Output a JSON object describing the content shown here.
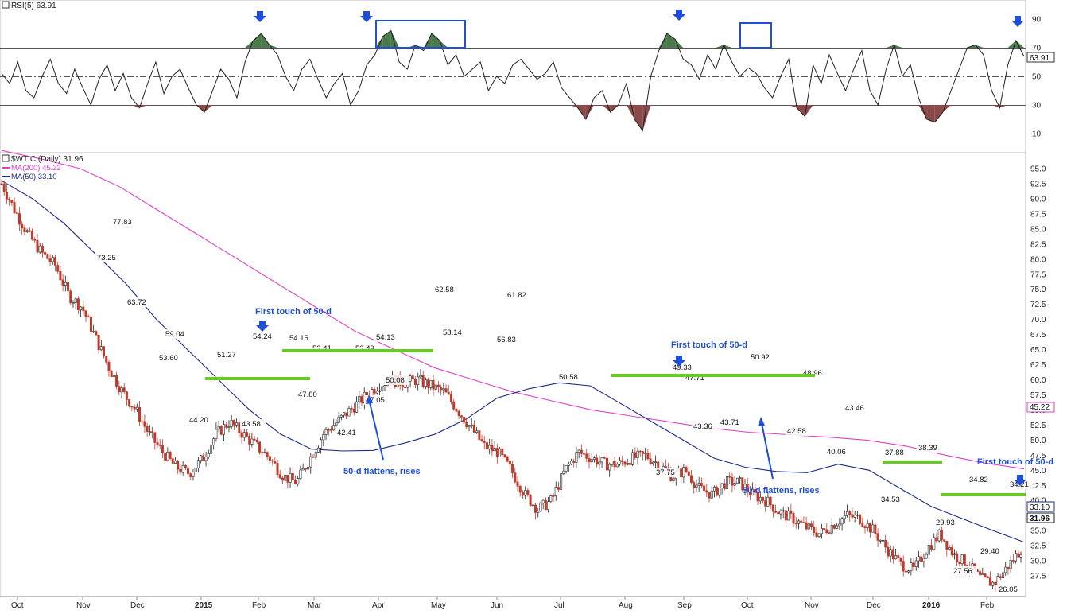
{
  "panel_labels": {
    "rsi": "RSI(5) 63.91",
    "price": "$WTIC (Daily) 31.96",
    "ma200": "MA(200) 45.22",
    "ma50": "MA(50) 33.10"
  },
  "colors": {
    "price_down": "#c0392b",
    "price_up": "#222222",
    "ma200": "#e040c8",
    "ma50": "#1a2a8a",
    "support": "#66cc22",
    "annotation": "#1f4fd8",
    "rsi_over": "#4a7a4a",
    "rsi_under": "#8b4a4a"
  },
  "chart_data": {
    "type": "line",
    "price_axis": {
      "min": 25,
      "max": 95,
      "ticks": [
        "95.0",
        "92.5",
        "90.0",
        "87.5",
        "85.0",
        "82.5",
        "80.0",
        "77.5",
        "75.0",
        "72.5",
        "70.0",
        "67.5",
        "65.0",
        "62.5",
        "60.0",
        "57.5",
        "55.0",
        "52.5",
        "50.0",
        "47.5",
        "45.0",
        "42.5",
        "40.0",
        "37.5",
        "35.0",
        "32.5",
        "30.0",
        "27.5"
      ]
    },
    "rsi_axis": {
      "min": 0,
      "max": 100,
      "ticks": [
        "90",
        "70",
        "50",
        "30",
        "10"
      ],
      "levels": [
        70,
        50,
        30
      ]
    },
    "x_axis_labels": [
      "Oct",
      "Nov",
      "Dec",
      "2015",
      "Feb",
      "Mar",
      "Apr",
      "May",
      "Jun",
      "Jul",
      "Aug",
      "Sep",
      "Oct",
      "Nov",
      "Dec",
      "2016",
      "Feb"
    ],
    "series": [
      {
        "name": "MA(200)",
        "values": [
          98,
          96.6,
          95,
          92,
          88,
          84,
          80,
          76,
          72,
          68,
          65,
          62,
          60,
          58,
          56.5,
          55,
          54,
          53,
          52,
          51.3,
          50.9,
          50.5,
          50,
          49,
          47.5,
          46.2,
          45.22
        ]
      },
      {
        "name": "MA(50)",
        "values": [
          93,
          90,
          86,
          81,
          76,
          70,
          65,
          60,
          55,
          51,
          48.5,
          48.2,
          48.3,
          49.5,
          51,
          53.5,
          57,
          58.5,
          59.5,
          59,
          56,
          53,
          50,
          47,
          45.5,
          44.8,
          44.6,
          46,
          45,
          42,
          39,
          37,
          35,
          33.1
        ]
      }
    ],
    "price_path": [
      92.5,
      88,
      84,
      81,
      79,
      74,
      72,
      67,
      62,
      58,
      55,
      51,
      48,
      45.5,
      44.5,
      47,
      51,
      53,
      51,
      49,
      47,
      44,
      43,
      47,
      51,
      53,
      55,
      57,
      59,
      60,
      59.5,
      60,
      59,
      58,
      55,
      52,
      49,
      48,
      45,
      41,
      38.5,
      40,
      45,
      48,
      47,
      46,
      46,
      47,
      47.5,
      46,
      44,
      45,
      42,
      41,
      43,
      43,
      41,
      40,
      38,
      37,
      35.5,
      34.5,
      36,
      37.5,
      37,
      35,
      32,
      29.5,
      28.5,
      32,
      34.5,
      31,
      29.5,
      27,
      26.2,
      29,
      31.96
    ],
    "price_labels": [
      "77.83",
      "73.25",
      "63.72",
      "59.04",
      "53.60",
      "51.27",
      "44.20",
      "43.58",
      "54.24",
      "54.15",
      "53.41",
      "47.80",
      "53.49",
      "42.41",
      "54.13",
      "47.05",
      "50.08",
      "62.58",
      "58.14",
      "61.82",
      "56.83",
      "50.58",
      "49.33",
      "47.71",
      "43.36",
      "43.71",
      "50.92",
      "48.96",
      "42.58",
      "40.06",
      "43.46",
      "37.75",
      "37.88",
      "38.39",
      "34.53",
      "29.93",
      "34.82",
      "27.56",
      "29.40",
      "34.21",
      "26.05"
    ],
    "last_values": [
      "63.91",
      "45.22",
      "33.10",
      "31.96"
    ],
    "annotations": [
      "First touch of 50-d",
      "50-d flattens, rises",
      "First touch of 50-d",
      "50-d flattens, rises",
      "First touch of 50-d"
    ],
    "rsi_values": [
      52,
      45,
      60,
      40,
      35,
      50,
      62,
      45,
      38,
      55,
      42,
      30,
      48,
      58,
      40,
      52,
      35,
      28,
      45,
      60,
      38,
      50,
      55,
      42,
      30,
      25,
      40,
      55,
      48,
      35,
      60,
      75,
      80,
      72,
      65,
      50,
      40,
      55,
      62,
      48,
      35,
      45,
      52,
      30,
      40,
      58,
      65,
      78,
      82,
      60,
      55,
      72,
      68,
      80,
      75,
      58,
      65,
      50,
      55,
      60,
      40,
      50,
      45,
      58,
      62,
      55,
      48,
      52,
      60,
      42,
      35,
      28,
      20,
      35,
      40,
      25,
      30,
      45,
      20,
      12,
      50,
      68,
      80,
      76,
      62,
      58,
      48,
      65,
      55,
      72,
      60,
      50,
      56,
      52,
      42,
      35,
      50,
      62,
      28,
      22,
      58,
      45,
      65,
      52,
      40,
      55,
      68,
      40,
      30,
      55,
      72,
      50,
      58,
      35,
      20,
      18,
      25,
      40,
      55,
      70,
      72,
      65,
      40,
      28,
      58,
      75,
      63.91
    ]
  }
}
